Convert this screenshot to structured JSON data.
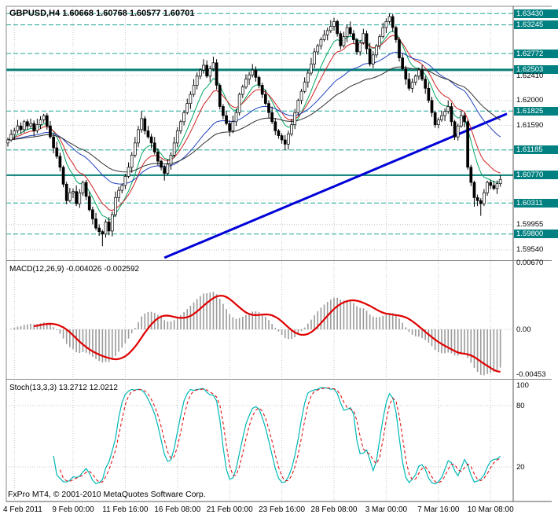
{
  "header": {
    "symbol_ohlc": "GBPUSD,H4 1.60668 1.60768 1.60577 1.60701"
  },
  "footer": {
    "copyright": "FxPro MT4, © 2001-2010 MetaQuotes Software Corp."
  },
  "time_axis": {
    "labels": [
      "4 Feb 2011",
      "9 Feb 00:00",
      "11 Feb 16:00",
      "16 Feb 08:00",
      "21 Feb 00:00",
      "23 Feb 16:00",
      "28 Feb 08:00",
      "3 Mar 00:00",
      "7 Mar 16:00",
      "10 Mar 08:00"
    ],
    "indices": [
      2,
      20,
      36,
      52,
      68,
      84,
      100,
      116,
      132,
      148
    ]
  },
  "colors": {
    "background": "#ffffff",
    "grid": "#c4c4c4",
    "candle": "#000000",
    "level_dashed": "#1ea79b",
    "level_solid": "#067f76",
    "label_highlight_bg": "#008080",
    "trendline": "#0000d8"
  },
  "chart_data": [
    {
      "type": "candlestick",
      "title": "GBPUSD,H4",
      "symbol": "GBPUSD",
      "timeframe": "H4",
      "current_bar": {
        "open": 1.60668,
        "high": 1.60768,
        "low": 1.60577,
        "close": 1.60701
      },
      "ylim": [
        1.5937,
        1.6355
      ],
      "grid_levels": [
        1.6241,
        1.62,
        1.6159,
        1.6118,
        1.6077,
        1.6036,
        1.59955,
        1.5954
      ],
      "axis_labels": [
        {
          "text": "1.63430",
          "value": 1.6343,
          "highlight": true
        },
        {
          "text": "1.63245",
          "value": 1.63245,
          "highlight": true
        },
        {
          "text": "1.62772",
          "value": 1.62772,
          "highlight": true
        },
        {
          "text": "1.62503",
          "value": 1.62503,
          "highlight": true
        },
        {
          "text": "1.62410",
          "value": 1.6241,
          "highlight": false
        },
        {
          "text": "1.62000",
          "value": 1.62,
          "highlight": false
        },
        {
          "text": "1.61825",
          "value": 1.61825,
          "highlight": true
        },
        {
          "text": "1.61590",
          "value": 1.6159,
          "highlight": false
        },
        {
          "text": "1.61185",
          "value": 1.61185,
          "highlight": true
        },
        {
          "text": "1.60770",
          "value": 1.6077,
          "highlight": true
        },
        {
          "text": "1.60311",
          "value": 1.60311,
          "highlight": true
        },
        {
          "text": "1.59955",
          "value": 1.59955,
          "highlight": false
        },
        {
          "text": "1.59800",
          "value": 1.598,
          "highlight": true
        },
        {
          "text": "1.59540",
          "value": 1.5954,
          "highlight": false
        }
      ],
      "levels": [
        {
          "value": 1.6343,
          "style": "dashed",
          "width": 1
        },
        {
          "value": 1.63245,
          "style": "dashed",
          "width": 1
        },
        {
          "value": 1.62772,
          "style": "dashed",
          "width": 1
        },
        {
          "value": 1.62503,
          "style": "solid",
          "width": 3
        },
        {
          "value": 1.61825,
          "style": "dashed",
          "width": 1
        },
        {
          "value": 1.61185,
          "style": "dashed",
          "width": 1
        },
        {
          "value": 1.6077,
          "style": "solid",
          "width": 2
        },
        {
          "value": 1.60311,
          "style": "dashed",
          "width": 1
        },
        {
          "value": 1.598,
          "style": "dashed",
          "width": 1
        }
      ],
      "trendline": {
        "i1": 48,
        "p1": 1.5941,
        "i2": 153,
        "p2": 1.6178,
        "width": 3
      },
      "moving_averages": [
        {
          "period": 8,
          "color": "#00a862"
        },
        {
          "period": 13,
          "color": "#d02020"
        },
        {
          "period": 34,
          "color": "#2040c0"
        },
        {
          "period": 55,
          "color": "#303030"
        }
      ],
      "open0": 1.613,
      "closes": [
        1.6135,
        1.6144,
        1.615,
        1.6158,
        1.6152,
        1.6165,
        1.6158,
        1.6162,
        1.615,
        1.616,
        1.6168,
        1.6175,
        1.6158,
        1.614,
        1.6122,
        1.6108,
        1.609,
        1.6062,
        1.6035,
        1.6048,
        1.605,
        1.603,
        1.6048,
        1.6065,
        1.6042,
        1.602,
        1.6005,
        1.599,
        1.5984,
        1.598,
        1.6,
        1.5985,
        1.6012,
        1.604,
        1.6052,
        1.606,
        1.6075,
        1.609,
        1.611,
        1.613,
        1.6152,
        1.617,
        1.615,
        1.614,
        1.613,
        1.6115,
        1.61,
        1.609,
        1.608,
        1.6095,
        1.611,
        1.613,
        1.615,
        1.6165,
        1.618,
        1.6195,
        1.621,
        1.6225,
        1.624,
        1.625,
        1.6258,
        1.624,
        1.6252,
        1.6262,
        1.6225,
        1.619,
        1.6175,
        1.6162,
        1.615,
        1.6165,
        1.618,
        1.621,
        1.6222,
        1.6235,
        1.6242,
        1.625,
        1.6238,
        1.6225,
        1.621,
        1.6195,
        1.618,
        1.6165,
        1.615,
        1.6142,
        1.6135,
        1.6128,
        1.6145,
        1.616,
        1.618,
        1.62,
        1.6215,
        1.623,
        1.6245,
        1.626,
        1.628,
        1.629,
        1.63,
        1.6308,
        1.6315,
        1.6322,
        1.633,
        1.631,
        1.629,
        1.6305,
        1.632,
        1.631,
        1.63,
        1.628,
        1.6295,
        1.631,
        1.6285,
        1.626,
        1.6275,
        1.629,
        1.6305,
        1.632,
        1.633,
        1.6338,
        1.632,
        1.63,
        1.627,
        1.6252,
        1.6235,
        1.622,
        1.623,
        1.624,
        1.625,
        1.6235,
        1.622,
        1.62,
        1.618,
        1.616,
        1.6168,
        1.6175,
        1.6182,
        1.619,
        1.6165,
        1.614,
        1.6158,
        1.6175,
        1.6165,
        1.609,
        1.6065,
        1.604,
        1.6035,
        1.603,
        1.6048,
        1.6065,
        1.606,
        1.6055,
        1.6063,
        1.607
      ],
      "highs": [
        1.6139,
        1.6152,
        1.6155,
        1.6168,
        1.6164,
        1.6168,
        1.6169,
        1.617,
        1.6167,
        1.617,
        1.6174,
        1.6178,
        1.6179,
        1.6166,
        1.6145,
        1.6132,
        1.6114,
        1.6093,
        1.6066,
        1.6056,
        1.6055,
        1.606,
        1.6054,
        1.6068,
        1.6069,
        1.605,
        1.6025,
        1.6015,
        1.5996,
        1.5987,
        1.6004,
        1.6008,
        1.6017,
        1.605,
        1.6058,
        1.6063,
        1.6079,
        1.6098,
        1.6115,
        1.614,
        1.6158,
        1.6182,
        1.6174,
        1.6158,
        1.6145,
        1.614,
        1.6121,
        1.6103,
        1.6094,
        1.6103,
        1.6115,
        1.614,
        1.6156,
        1.6168,
        1.6184,
        1.6203,
        1.6215,
        1.6235,
        1.6246,
        1.6253,
        1.6268,
        1.6266,
        1.6257,
        1.6272,
        1.6268,
        1.6228,
        1.6194,
        1.6183,
        1.6167,
        1.6175,
        1.6186,
        1.6213,
        1.6226,
        1.6243,
        1.6247,
        1.626,
        1.6256,
        1.6241,
        1.6229,
        1.6218,
        1.62,
        1.619,
        1.6171,
        1.6153,
        1.6146,
        1.6143,
        1.615,
        1.617,
        1.6186,
        1.6203,
        1.6219,
        1.6238,
        1.625,
        1.627,
        1.6286,
        1.6293,
        1.6304,
        1.6316,
        1.632,
        1.6332,
        1.6336,
        1.6333,
        1.6314,
        1.6313,
        1.6325,
        1.633,
        1.6316,
        1.6303,
        1.6299,
        1.6318,
        1.6315,
        1.6295,
        1.6281,
        1.6293,
        1.6309,
        1.6328,
        1.6335,
        1.6343,
        1.6342,
        1.6323,
        1.6304,
        1.6278,
        1.6257,
        1.6245,
        1.6236,
        1.6243,
        1.6254,
        1.6258,
        1.624,
        1.623,
        1.6206,
        1.6183,
        1.6172,
        1.6183,
        1.6187,
        1.62,
        1.6196,
        1.6168,
        1.6162,
        1.6183,
        1.618,
        1.6168,
        1.6094,
        1.6068,
        1.6045,
        1.6039,
        1.6054,
        1.6068,
        1.6069,
        1.6068,
        1.6068,
        1.6077
      ],
      "lows": [
        1.6124,
        1.6132,
        1.6135,
        1.6146,
        1.6145,
        1.6147,
        1.6152,
        1.6155,
        1.6141,
        1.6146,
        1.6153,
        1.6163,
        1.6152,
        1.6137,
        1.6113,
        1.6104,
        1.6083,
        1.6057,
        1.6029,
        1.6032,
        1.6039,
        1.6026,
        1.6023,
        1.6043,
        1.6036,
        1.6017,
        1.5996,
        1.5986,
        1.5977,
        1.596,
        1.5974,
        1.5978,
        1.5976,
        1.6008,
        1.6033,
        1.6047,
        1.6054,
        1.6072,
        1.6081,
        1.6106,
        1.6123,
        1.6147,
        1.6144,
        1.6137,
        1.6121,
        1.6111,
        1.6093,
        1.6085,
        1.6068,
        1.6077,
        1.6086,
        1.6106,
        1.6123,
        1.6145,
        1.6159,
        1.6177,
        1.6186,
        1.6206,
        1.6218,
        1.6235,
        1.6244,
        1.6237,
        1.6231,
        1.6248,
        1.6218,
        1.6185,
        1.6169,
        1.6159,
        1.6141,
        1.6146,
        1.6158,
        1.6175,
        1.6204,
        1.6219,
        1.6226,
        1.6238,
        1.6231,
        1.622,
        1.6204,
        1.6192,
        1.6171,
        1.6161,
        1.6143,
        1.6137,
        1.6129,
        1.6118,
        1.6119,
        1.6141,
        1.6153,
        1.6175,
        1.6194,
        1.6212,
        1.6221,
        1.6241,
        1.6253,
        1.6275,
        1.6284,
        1.6297,
        1.6299,
        1.6311,
        1.6315,
        1.6305,
        1.6284,
        1.6287,
        1.6296,
        1.6306,
        1.6293,
        1.6275,
        1.6274,
        1.6292,
        1.6276,
        1.6256,
        1.6253,
        1.627,
        1.6284,
        1.6302,
        1.6311,
        1.6326,
        1.6313,
        1.6295,
        1.6264,
        1.6249,
        1.6226,
        1.6216,
        1.6213,
        1.6225,
        1.6234,
        1.6232,
        1.6211,
        1.6196,
        1.6173,
        1.6155,
        1.6154,
        1.6165,
        1.6166,
        1.6178,
        1.6158,
        1.6135,
        1.6134,
        1.6155,
        1.6156,
        1.6086,
        1.6059,
        1.6025,
        1.6026,
        1.601,
        1.6026,
        1.6043,
        1.6054,
        1.6052,
        1.6046,
        1.6058
      ]
    },
    {
      "type": "line",
      "subtype": "macd",
      "label": "MACD(12,26,9) -0.004026 -0.002592",
      "params": [
        12,
        26,
        9
      ],
      "values_text": [
        "-0.004026",
        "-0.002592"
      ],
      "ylim": [
        -0.0048,
        0.0067
      ],
      "axis_labels": [
        {
          "text": "0.00670",
          "value": 0.0067
        },
        {
          "text": "0.00",
          "value": 0
        },
        {
          "text": "-0.00453",
          "value": -0.00453
        }
      ],
      "histogram_color": "#9a9a9a",
      "signal_color": "#e00000"
    },
    {
      "type": "line",
      "subtype": "stochastic",
      "label": "Stoch(13,3,3) 13.2712 12.0212",
      "params": [
        13,
        3,
        3
      ],
      "values_text": [
        "13.2712",
        "12.0212"
      ],
      "ylim": [
        0,
        100
      ],
      "grid_levels": [
        80,
        20
      ],
      "axis_labels": [
        {
          "text": "100",
          "value": 100
        },
        {
          "text": "80",
          "value": 80
        },
        {
          "text": "20",
          "value": 20
        }
      ],
      "k_color": "#00b7b7",
      "d_color": "#e00000"
    }
  ]
}
